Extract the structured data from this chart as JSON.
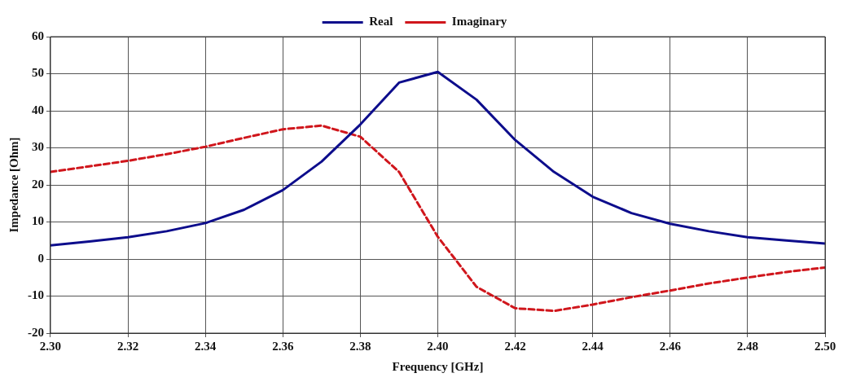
{
  "chart_data": {
    "type": "line",
    "xlabel": "Frequency [GHz]",
    "ylabel": "Impedance [Ohm]",
    "x": [
      2.3,
      2.31,
      2.32,
      2.33,
      2.34,
      2.35,
      2.36,
      2.37,
      2.38,
      2.39,
      2.4,
      2.41,
      2.42,
      2.43,
      2.44,
      2.45,
      2.46,
      2.47,
      2.48,
      2.49,
      2.5
    ],
    "series": [
      {
        "name": "Real",
        "color": "#0d0d8c",
        "line_style": "solid",
        "values": [
          3.7,
          4.7,
          5.9,
          7.5,
          9.7,
          13.3,
          18.6,
          26.3,
          36.3,
          47.6,
          50.5,
          43,
          32.1,
          23.5,
          16.8,
          12.4,
          9.5,
          7.5,
          5.9,
          5,
          4.2
        ]
      },
      {
        "name": "Imaginary",
        "color": "#d0161c",
        "line_style": "dashed",
        "values": [
          23.5,
          25,
          26.5,
          28.3,
          30.3,
          32.7,
          35,
          36,
          33,
          23.5,
          6,
          -7.5,
          -13.3,
          -14,
          -12.3,
          -10.3,
          -8.5,
          -6.6,
          -5,
          -3.5,
          -2.3
        ]
      }
    ],
    "xlim": [
      2.3,
      2.5
    ],
    "xticks": [
      {
        "value": 2.3,
        "label": "2.30"
      },
      2.32,
      2.34,
      2.36,
      2.38,
      {
        "value": 2.4,
        "label": "2.40"
      },
      2.42,
      2.44,
      2.46,
      2.48,
      {
        "value": 2.5,
        "label": "2.50"
      }
    ],
    "ylim": [
      -20,
      60
    ],
    "yticks": [
      -20,
      -10,
      0,
      10,
      20,
      30,
      40,
      50,
      60
    ],
    "grid": true,
    "legend": "top",
    "marker": "none"
  }
}
